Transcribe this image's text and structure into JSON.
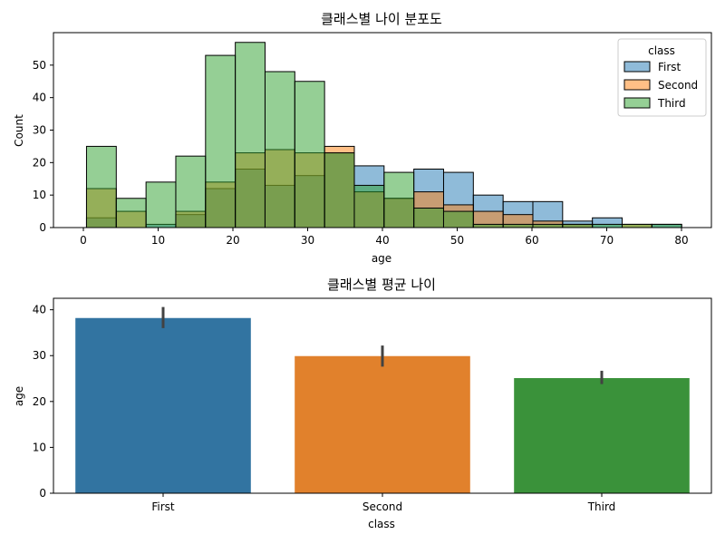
{
  "chart_data": [
    {
      "type": "histogram",
      "title": "클래스별 나이 분포도",
      "xlabel": "age",
      "ylabel": "Count",
      "xlim": [
        -4,
        84
      ],
      "ylim": [
        0,
        60
      ],
      "xticks": [
        0,
        10,
        20,
        30,
        40,
        50,
        60,
        70,
        80
      ],
      "yticks": [
        0,
        10,
        20,
        30,
        40,
        50
      ],
      "bin_start": 0.42,
      "bin_width": 3.98,
      "legend": {
        "title": "class",
        "position": "top-right"
      },
      "series": [
        {
          "name": "First",
          "color": "#1f77b4",
          "values": [
            3,
            0,
            1,
            4,
            12,
            18,
            13,
            16,
            23,
            19,
            9,
            18,
            17,
            10,
            8,
            8,
            2,
            3,
            0,
            1
          ]
        },
        {
          "name": "Second",
          "color": "#ff7f0e",
          "values": [
            12,
            5,
            0,
            5,
            14,
            23,
            24,
            23,
            25,
            11,
            9,
            11,
            7,
            5,
            4,
            2,
            1,
            0,
            1,
            0
          ]
        },
        {
          "name": "Third",
          "color": "#2ca02c",
          "values": [
            25,
            9,
            14,
            22,
            53,
            57,
            48,
            45,
            23,
            13,
            17,
            6,
            5,
            1,
            1,
            1,
            1,
            1,
            1,
            1
          ]
        }
      ]
    },
    {
      "type": "bar",
      "title": "클래스별 평균 나이",
      "xlabel": "class",
      "ylabel": "age",
      "ylim": [
        0,
        42.5
      ],
      "yticks": [
        0,
        10,
        20,
        30,
        40
      ],
      "categories": [
        "First",
        "Second",
        "Third"
      ],
      "values": [
        38.2,
        29.9,
        25.1
      ],
      "ci_low": [
        36.0,
        27.6,
        23.8
      ],
      "ci_high": [
        40.6,
        32.2,
        26.7
      ],
      "colors": [
        "#3274a1",
        "#e1812c",
        "#3a923a"
      ]
    }
  ]
}
